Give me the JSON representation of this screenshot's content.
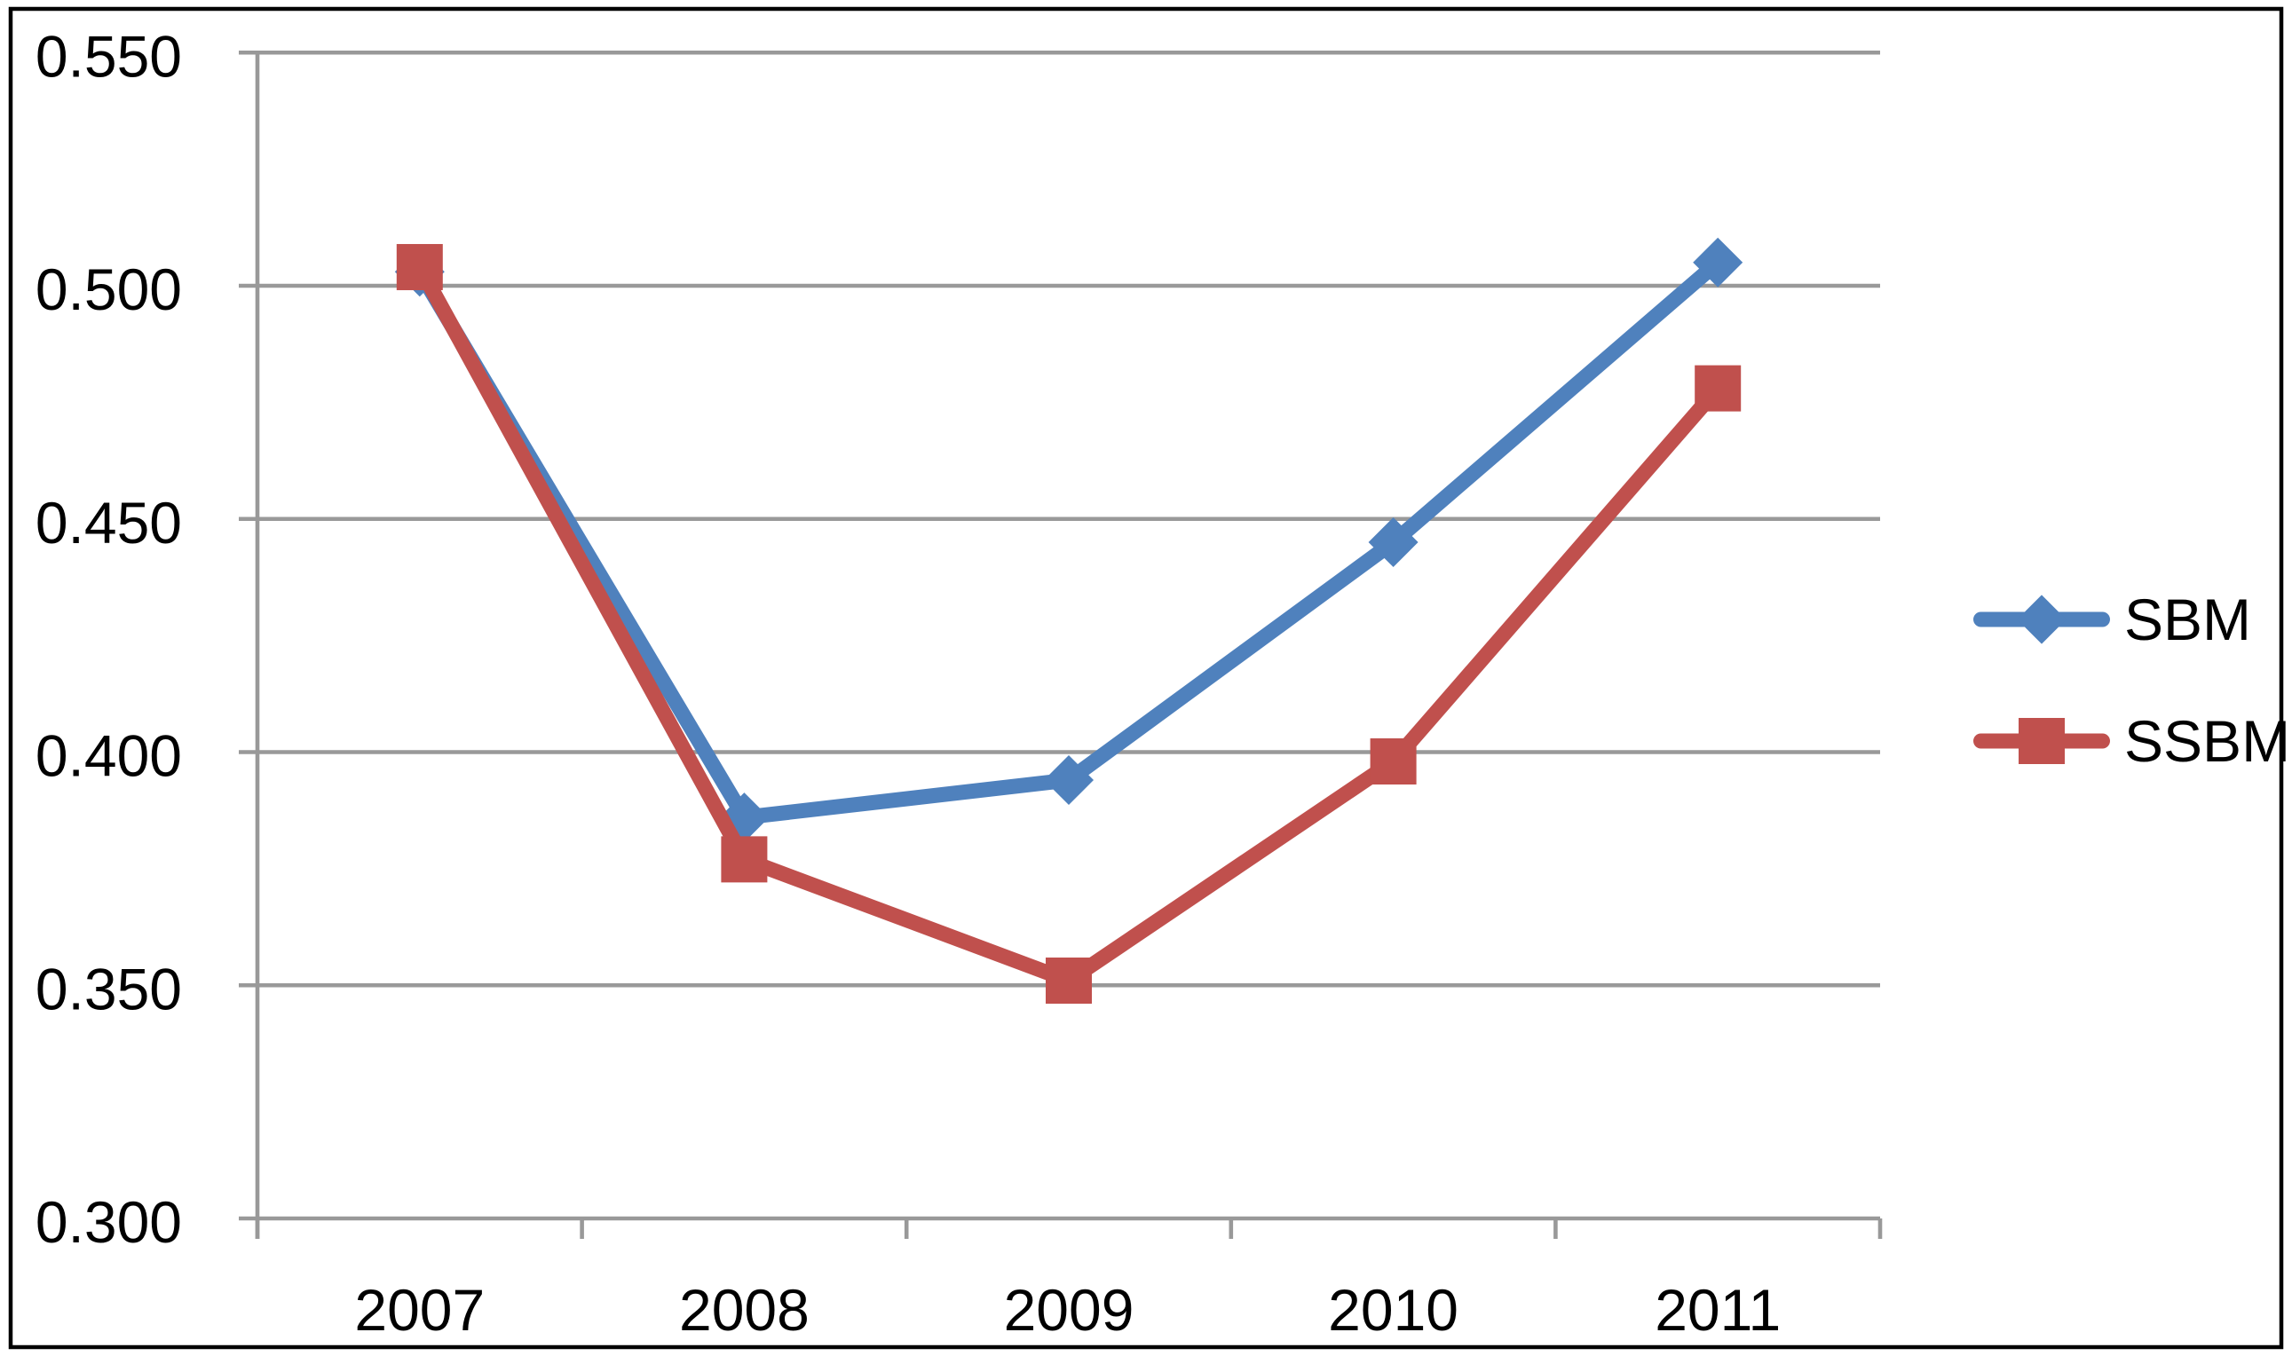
{
  "chart_data": {
    "type": "line",
    "title": "",
    "xlabel": "",
    "ylabel": "",
    "categories": [
      "2007",
      "2008",
      "2009",
      "2010",
      "2011"
    ],
    "series": [
      {
        "name": "SBM",
        "marker": "diamond",
        "color": "#4F81BD",
        "values": [
          0.503,
          0.386,
          0.394,
          0.445,
          0.505
        ]
      },
      {
        "name": "SSBM",
        "marker": "square",
        "color": "#C0504D",
        "values": [
          0.504,
          0.377,
          0.351,
          0.398,
          0.478
        ]
      }
    ],
    "ylim": [
      0.3,
      0.55
    ],
    "ytick_step": 0.05,
    "ytick_labels": [
      "0.300",
      "0.350",
      "0.400",
      "0.450",
      "0.500",
      "0.550"
    ],
    "grid": "horizontal",
    "legend_position": "right-middle",
    "colors": {
      "axis": "#999999",
      "grid": "#999999",
      "text": "#000000",
      "background": "#FFFFFF",
      "frame": "#000000"
    }
  }
}
